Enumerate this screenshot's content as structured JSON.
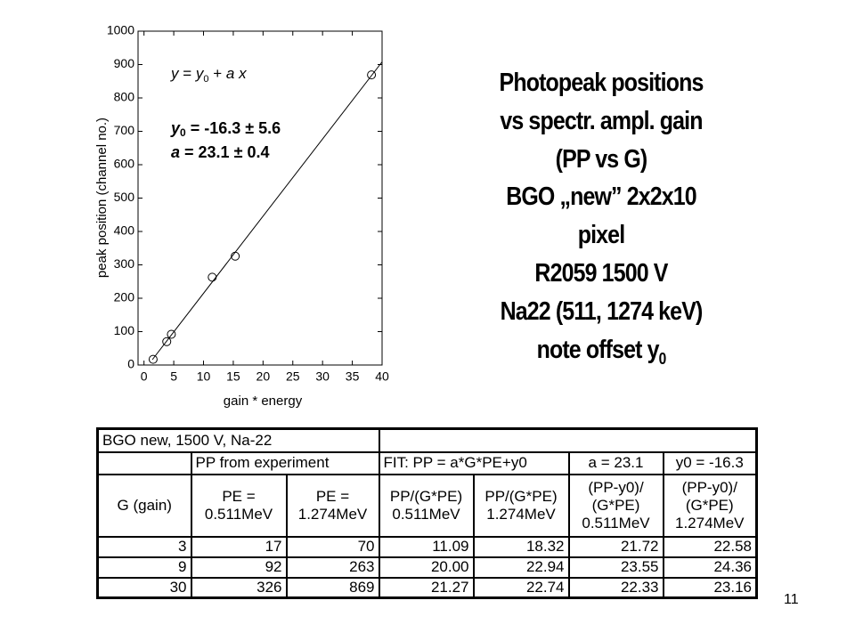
{
  "chart_data": {
    "type": "scatter",
    "x": [
      1.533,
      3.822,
      4.599,
      11.466,
      15.33,
      38.22
    ],
    "values": [
      17,
      70,
      92,
      263,
      326,
      869
    ],
    "fit_line": {
      "x": [
        1.4,
        40
      ],
      "values": [
        16,
        908
      ]
    },
    "xlabel": "gain * energy",
    "ylabel": "peak position (channel no.)",
    "xlim": [
      -1,
      40
    ],
    "xticks": [
      0,
      5,
      10,
      15,
      20,
      25,
      30,
      35,
      40
    ],
    "ylim": [
      0,
      1000
    ],
    "yticks": [
      0,
      100,
      200,
      300,
      400,
      500,
      600,
      700,
      800,
      900,
      1000
    ],
    "color": "#000000",
    "annotations": {
      "equation": [
        "y",
        " = ",
        "y",
        "0",
        " + ",
        "a",
        " x"
      ],
      "offset": [
        "y",
        "0",
        " = -16.3 ± 5.6"
      ],
      "slope": [
        "a",
        " = 23.1 ± 0.4"
      ]
    }
  },
  "slide_text": {
    "lines": [
      "Photopeak positions",
      "vs spectr. ampl. gain",
      "(PP vs G)",
      "BGO „new” 2x2x10",
      "pixel",
      "R2059 1500 V",
      "Na22 (511, 1274 keV)"
    ],
    "last_line": [
      "note offset y",
      "0"
    ]
  },
  "table": {
    "title": "BGO new, 1500 V, Na-22",
    "group_row": [
      "PP from experiment",
      "FIT: PP = a*G*PE+y0",
      "a = 23.1",
      "y0 = -16.3"
    ],
    "header": [
      [
        "G (gain)"
      ],
      [
        "PE =",
        "0.511MeV"
      ],
      [
        "PE =",
        "1.274MeV"
      ],
      [
        "PP/(G*PE)",
        "0.511MeV"
      ],
      [
        "PP/(G*PE)",
        "1.274MeV"
      ],
      [
        "(PP-y0)/",
        "(G*PE)",
        "0.511MeV"
      ],
      [
        "(PP-y0)/",
        "(G*PE)",
        "1.274MeV"
      ]
    ],
    "rows": [
      [
        "3",
        "17",
        "70",
        "11.09",
        "18.32",
        "21.72",
        "22.58"
      ],
      [
        "9",
        "92",
        "263",
        "20.00",
        "22.94",
        "23.55",
        "24.36"
      ],
      [
        "30",
        "326",
        "869",
        "21.27",
        "22.74",
        "22.33",
        "23.16"
      ]
    ]
  },
  "page_number": "11"
}
